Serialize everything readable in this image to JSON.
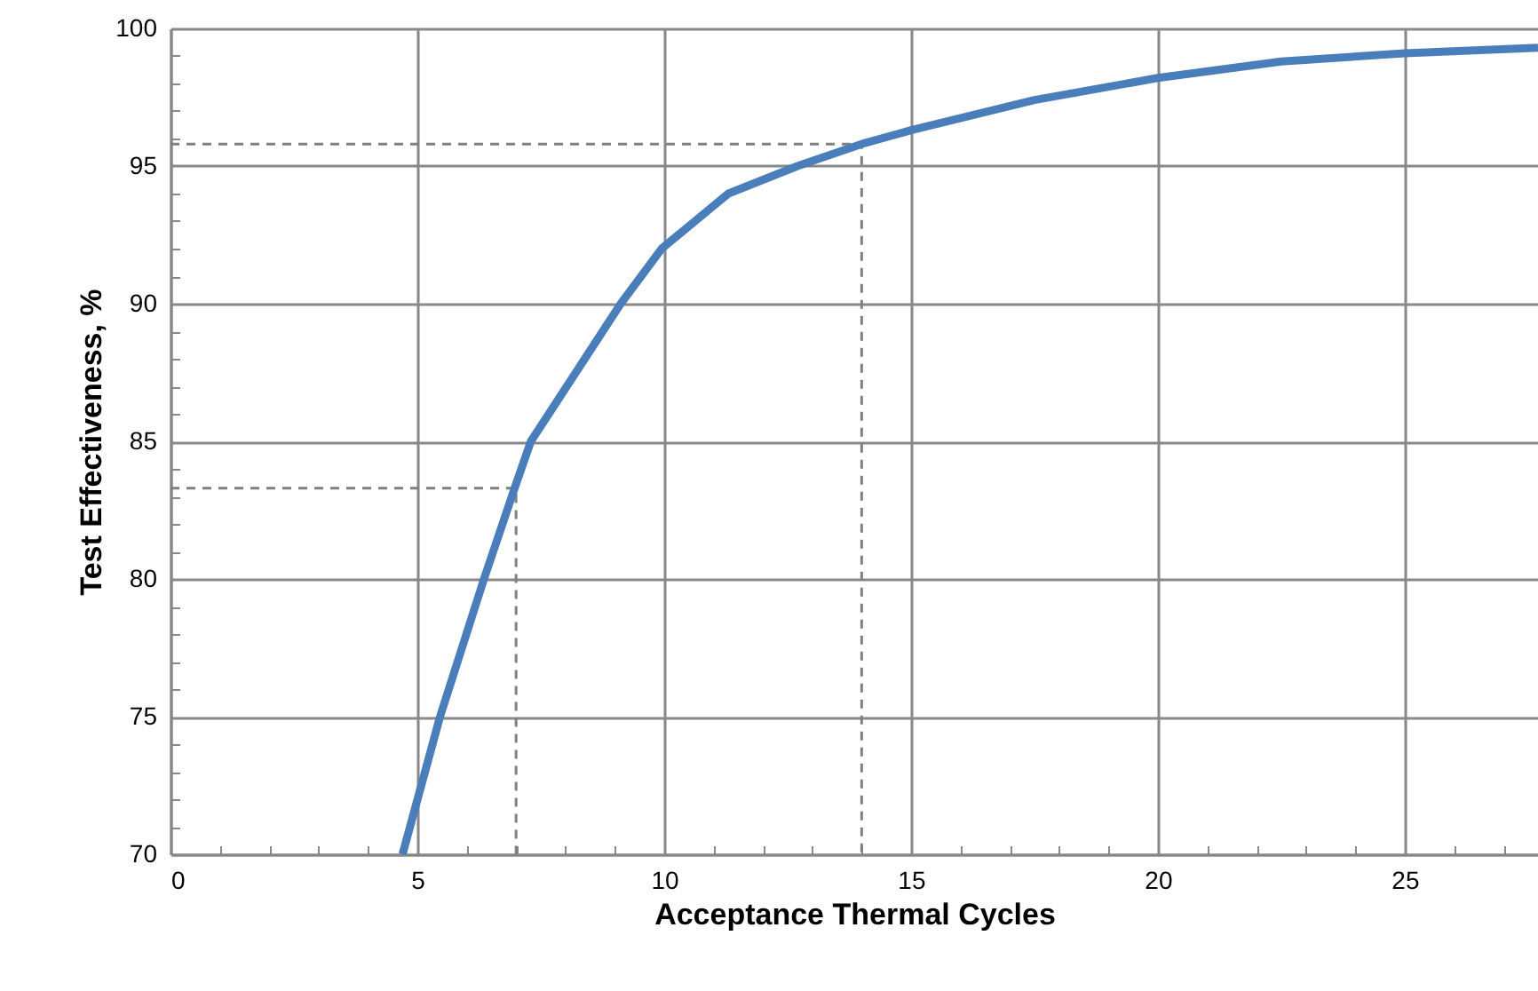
{
  "chart_data": {
    "type": "line",
    "xlabel": "Acceptance Thermal Cycles",
    "ylabel": "Test Effectiveness, %",
    "xlim": [
      0,
      27.7
    ],
    "ylim": [
      70,
      100
    ],
    "xticks": [
      0,
      {
        "value": 1,
        "label": null
      },
      {
        "value": 2,
        "label": null
      },
      {
        "value": 3,
        "label": null
      },
      {
        "value": 4,
        "label": null
      },
      5,
      {
        "value": 6,
        "label": null
      },
      {
        "value": 7,
        "label": null
      },
      {
        "value": 8,
        "label": null
      },
      {
        "value": 9,
        "label": null
      },
      10,
      {
        "value": 11,
        "label": null
      },
      {
        "value": 12,
        "label": null
      },
      {
        "value": 13,
        "label": null
      },
      {
        "value": 14,
        "label": null
      },
      15,
      {
        "value": 16,
        "label": null
      },
      {
        "value": 17,
        "label": null
      },
      {
        "value": 18,
        "label": null
      },
      {
        "value": 19,
        "label": null
      },
      20,
      {
        "value": 21,
        "label": null
      },
      {
        "value": 22,
        "label": null
      },
      {
        "value": 23,
        "label": null
      },
      {
        "value": 24,
        "label": null
      },
      25,
      {
        "value": 26,
        "label": null
      },
      {
        "value": 27,
        "label": null
      }
    ],
    "yticks": [
      70,
      {
        "value": 71,
        "label": null
      },
      {
        "value": 72,
        "label": null
      },
      {
        "value": 73,
        "label": null
      },
      {
        "value": 74,
        "label": null
      },
      75,
      {
        "value": 76,
        "label": null
      },
      {
        "value": 77,
        "label": null
      },
      {
        "value": 78,
        "label": null
      },
      {
        "value": 79,
        "label": null
      },
      80,
      {
        "value": 81,
        "label": null
      },
      {
        "value": 82,
        "label": null
      },
      {
        "value": 83,
        "label": null
      },
      {
        "value": 84,
        "label": null
      },
      85,
      {
        "value": 86,
        "label": null
      },
      {
        "value": 87,
        "label": null
      },
      {
        "value": 88,
        "label": null
      },
      {
        "value": 89,
        "label": null
      },
      90,
      {
        "value": 91,
        "label": null
      },
      {
        "value": 92,
        "label": null
      },
      {
        "value": 93,
        "label": null
      },
      {
        "value": 94,
        "label": null
      },
      95,
      {
        "value": 96,
        "label": null
      },
      {
        "value": 97,
        "label": null
      },
      {
        "value": 98,
        "label": null
      },
      {
        "value": 99,
        "label": null
      },
      100
    ],
    "grid": true,
    "marker": "none",
    "series": [
      {
        "color": "#4a7ebb",
        "line_style": "solid",
        "x": [
          4.7,
          5.46,
          6.35,
          6.97,
          7.3,
          9.12,
          9.95,
          11.3,
          12.7,
          14,
          15,
          17.5,
          20,
          22.5,
          25,
          27.7
        ],
        "values": [
          70,
          75,
          80,
          83.3,
          85,
          90,
          92,
          94,
          95,
          95.8,
          96.3,
          97.4,
          98.2,
          98.8,
          99.1,
          99.3
        ]
      },
      {
        "type": "line",
        "color": "#808080",
        "line_style": "dashed",
        "x": [
          0,
          7,
          7
        ],
        "values": [
          83.3,
          83.3,
          70
        ]
      },
      {
        "type": "line",
        "color": "#808080",
        "line_style": "dashed",
        "x": [
          0,
          14,
          14
        ],
        "values": [
          95.8,
          95.8,
          70
        ]
      }
    ]
  }
}
